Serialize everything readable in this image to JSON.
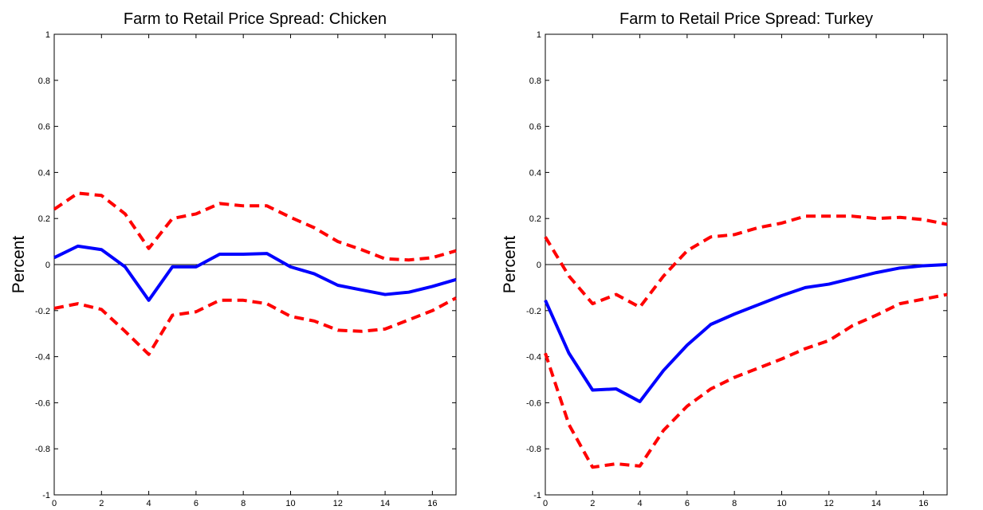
{
  "chart_data": [
    {
      "type": "line",
      "title": "Farm to Retail Price Spread: Chicken",
      "xlabel": "",
      "ylabel": "Percent",
      "xlim": [
        0,
        17
      ],
      "ylim": [
        -1,
        1
      ],
      "xticks": [
        0,
        2,
        4,
        6,
        8,
        10,
        12,
        14,
        16
      ],
      "yticks": [
        -1,
        -0.8,
        -0.6,
        -0.4,
        -0.2,
        0,
        0.2,
        0.4,
        0.6,
        0.8,
        1
      ],
      "ytick_labels": [
        "-1",
        "-0.8",
        "-0.6",
        "-0.4",
        "-0.2",
        "0",
        "0.2",
        "0.4",
        "0.6",
        "0.8",
        "1"
      ],
      "grid": false,
      "zero_line": true,
      "x": [
        0,
        1,
        2,
        3,
        4,
        5,
        6,
        7,
        8,
        9,
        10,
        11,
        12,
        13,
        14,
        15,
        16,
        17
      ],
      "series": [
        {
          "role": "estimate",
          "style": "solid",
          "color": "#0000ff",
          "values": [
            0.03,
            0.08,
            0.065,
            -0.01,
            -0.155,
            -0.01,
            -0.01,
            0.045,
            0.045,
            0.048,
            -0.01,
            -0.04,
            -0.09,
            -0.11,
            -0.13,
            -0.12,
            -0.095,
            -0.065
          ]
        },
        {
          "role": "upper-band",
          "style": "dashed",
          "color": "#ff0000",
          "values": [
            0.24,
            0.31,
            0.3,
            0.22,
            0.07,
            0.2,
            0.22,
            0.265,
            0.255,
            0.255,
            0.205,
            0.16,
            0.1,
            0.065,
            0.025,
            0.02,
            0.03,
            0.06
          ]
        },
        {
          "role": "lower-band",
          "style": "dashed",
          "color": "#ff0000",
          "values": [
            -0.19,
            -0.17,
            -0.195,
            -0.29,
            -0.39,
            -0.22,
            -0.205,
            -0.155,
            -0.155,
            -0.17,
            -0.225,
            -0.245,
            -0.285,
            -0.29,
            -0.28,
            -0.24,
            -0.2,
            -0.145
          ]
        }
      ]
    },
    {
      "type": "line",
      "title": "Farm to Retail Price Spread: Turkey",
      "xlabel": "",
      "ylabel": "Percent",
      "xlim": [
        0,
        17
      ],
      "ylim": [
        -1,
        1
      ],
      "xticks": [
        0,
        2,
        4,
        6,
        8,
        10,
        12,
        14,
        16
      ],
      "yticks": [
        -1,
        -0.8,
        -0.6,
        -0.4,
        -0.2,
        0,
        0.2,
        0.4,
        0.6,
        0.8,
        1
      ],
      "ytick_labels": [
        "-1",
        "-0.8",
        "-0.6",
        "-0.4",
        "-0.2",
        "0",
        "0.2",
        "0.4",
        "0.6",
        "0.8",
        "1"
      ],
      "grid": false,
      "zero_line": true,
      "x": [
        0,
        1,
        2,
        3,
        4,
        5,
        6,
        7,
        8,
        9,
        10,
        11,
        12,
        13,
        14,
        15,
        16,
        17
      ],
      "series": [
        {
          "role": "estimate",
          "style": "solid",
          "color": "#0000ff",
          "values": [
            -0.155,
            -0.385,
            -0.545,
            -0.54,
            -0.595,
            -0.46,
            -0.35,
            -0.26,
            -0.215,
            -0.175,
            -0.135,
            -0.1,
            -0.085,
            -0.06,
            -0.035,
            -0.015,
            -0.005,
            0.0
          ]
        },
        {
          "role": "upper-band",
          "style": "dashed",
          "color": "#ff0000",
          "values": [
            0.12,
            -0.05,
            -0.17,
            -0.13,
            -0.185,
            -0.05,
            0.06,
            0.12,
            0.13,
            0.16,
            0.18,
            0.21,
            0.21,
            0.21,
            0.2,
            0.205,
            0.195,
            0.175
          ]
        },
        {
          "role": "lower-band",
          "style": "dashed",
          "color": "#ff0000",
          "values": [
            -0.385,
            -0.695,
            -0.88,
            -0.865,
            -0.875,
            -0.72,
            -0.615,
            -0.54,
            -0.49,
            -0.45,
            -0.41,
            -0.365,
            -0.33,
            -0.265,
            -0.22,
            -0.17,
            -0.15,
            -0.13
          ]
        }
      ]
    }
  ]
}
